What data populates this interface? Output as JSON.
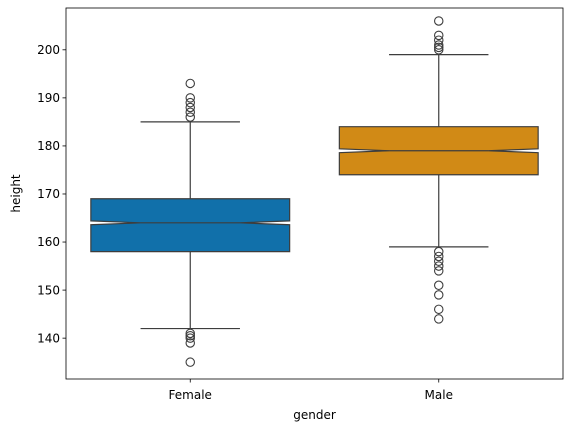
{
  "chart_data": {
    "type": "box",
    "notched": true,
    "xlabel": "gender",
    "ylabel": "height",
    "ylim": [
      131.5,
      208.7
    ],
    "yticks": [
      140,
      150,
      160,
      170,
      180,
      190,
      200
    ],
    "grid": false,
    "legend": "none",
    "categories": [
      "Female",
      "Male"
    ],
    "series": [
      {
        "category": "Female",
        "color": "#1170aa",
        "whisker_low": 142,
        "q1": 158,
        "notch_low": 163.6,
        "median": 164,
        "notch_high": 164.4,
        "q3": 169,
        "whisker_high": 185,
        "outliers": [
          135,
          139,
          140,
          140.5,
          141,
          186,
          187,
          188,
          189,
          190,
          193
        ]
      },
      {
        "category": "Male",
        "color": "#d18a16",
        "whisker_low": 159,
        "q1": 174,
        "notch_low": 178.6,
        "median": 179,
        "notch_high": 179.4,
        "q3": 184,
        "whisker_high": 199,
        "outliers": [
          144,
          146,
          149,
          151,
          154,
          155,
          156,
          157,
          158,
          200,
          200.5,
          201,
          202,
          203,
          206
        ]
      }
    ]
  }
}
